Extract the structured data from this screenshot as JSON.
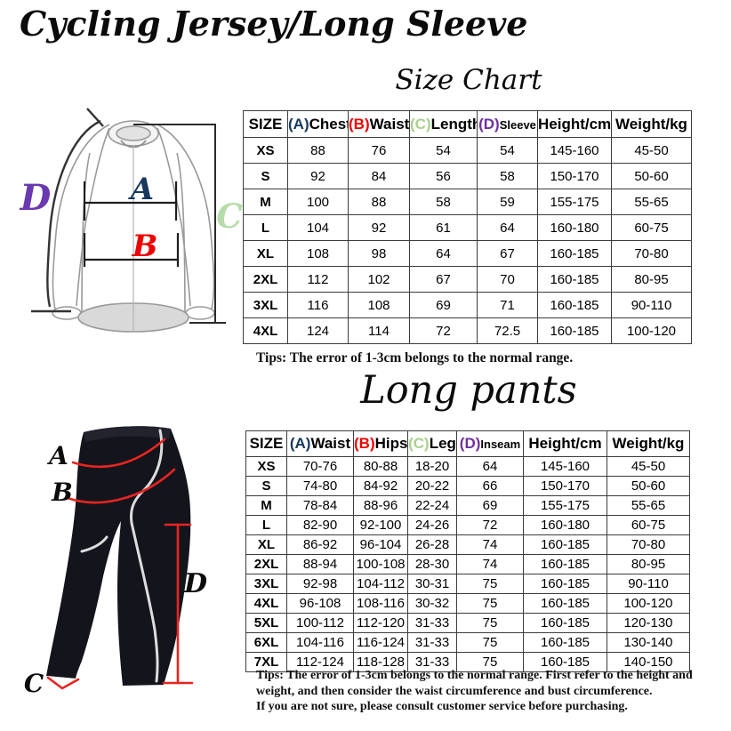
{
  "page": {
    "title": "Cycling Jersey/Long Sleeve",
    "size_chart_title": "Size Chart",
    "pants_title": "Long pants",
    "jersey_tips": "Tips: The error of 1-3cm belongs to the normal range.",
    "pants_tips_lines": [
      "Tips: The error of 1-3cm belongs to the normal range. First refer to the height and",
      "weight, and then consider the waist circumference and bust circumference.",
      "If you are not sure, please consult customer service before purchasing."
    ]
  },
  "colors": {
    "label_a_navy": "#17375e",
    "label_b_red": "#ee0000",
    "label_c_green": "#a9d18e",
    "label_d_purple": "#7030a0",
    "diagram_c_green": "#b7dcab",
    "diagram_d_purple": "#6a3ab0",
    "pants_annotation_red": "#e8251f",
    "table_border": "#3c3c3c"
  },
  "jersey_diagram": {
    "labels": {
      "a": "A",
      "b": "B",
      "c": "C",
      "d": "D"
    }
  },
  "pants_diagram": {
    "labels": {
      "a": "A",
      "b": "B",
      "c": "C",
      "d": "D"
    }
  },
  "jersey_table": {
    "columns": [
      {
        "prefix": "",
        "label": "SIZE"
      },
      {
        "prefix": "(A)",
        "color_key": "label_a_navy",
        "label": "Chest"
      },
      {
        "prefix": "(B)",
        "color_key": "label_b_red",
        "label": "Waist"
      },
      {
        "prefix": "(C)",
        "color_key": "label_c_green",
        "label": "Length"
      },
      {
        "prefix": "(D)",
        "color_key": "label_d_purple",
        "label": "Sleeve",
        "small": true
      },
      {
        "prefix": "",
        "label": "Height/cm"
      },
      {
        "prefix": "",
        "label": "Weight/kg"
      }
    ],
    "rows": [
      [
        "XS",
        "88",
        "76",
        "54",
        "54",
        "145-160",
        "45-50"
      ],
      [
        "S",
        "92",
        "84",
        "56",
        "58",
        "150-170",
        "50-60"
      ],
      [
        "M",
        "100",
        "88",
        "58",
        "59",
        "155-175",
        "55-65"
      ],
      [
        "L",
        "104",
        "92",
        "61",
        "64",
        "160-180",
        "60-75"
      ],
      [
        "XL",
        "108",
        "98",
        "64",
        "67",
        "160-185",
        "70-80"
      ],
      [
        "2XL",
        "112",
        "102",
        "67",
        "70",
        "160-185",
        "80-95"
      ],
      [
        "3XL",
        "116",
        "108",
        "69",
        "71",
        "160-185",
        "90-110"
      ],
      [
        "4XL",
        "124",
        "114",
        "72",
        "72.5",
        "160-185",
        "100-120"
      ]
    ]
  },
  "pants_table": {
    "columns": [
      {
        "prefix": "",
        "label": "SIZE"
      },
      {
        "prefix": "(A)",
        "color_key": "label_a_navy",
        "label": "Waist"
      },
      {
        "prefix": "(B)",
        "color_key": "label_b_red",
        "label": "Hips"
      },
      {
        "prefix": "(C)",
        "color_key": "label_c_green",
        "label": "Leg"
      },
      {
        "prefix": "(D)",
        "color_key": "label_d_purple",
        "label": "Inseam",
        "small": true
      },
      {
        "prefix": "",
        "label": "Height/cm"
      },
      {
        "prefix": "",
        "label": "Weight/kg"
      }
    ],
    "rows": [
      [
        "XS",
        "70-76",
        "80-88",
        "18-20",
        "64",
        "145-160",
        "45-50"
      ],
      [
        "S",
        "74-80",
        "84-92",
        "20-22",
        "66",
        "150-170",
        "50-60"
      ],
      [
        "M",
        "78-84",
        "88-96",
        "22-24",
        "69",
        "155-175",
        "55-65"
      ],
      [
        "L",
        "82-90",
        "92-100",
        "24-26",
        "72",
        "160-180",
        "60-75"
      ],
      [
        "XL",
        "86-92",
        "96-104",
        "26-28",
        "74",
        "160-185",
        "70-80"
      ],
      [
        "2XL",
        "88-94",
        "100-108",
        "28-30",
        "74",
        "160-185",
        "80-95"
      ],
      [
        "3XL",
        "92-98",
        "104-112",
        "30-31",
        "75",
        "160-185",
        "90-110"
      ],
      [
        "4XL",
        "96-108",
        "108-116",
        "30-32",
        "75",
        "160-185",
        "100-120"
      ],
      [
        "5XL",
        "100-112",
        "112-120",
        "31-33",
        "75",
        "160-185",
        "120-130"
      ],
      [
        "6XL",
        "104-116",
        "116-124",
        "31-33",
        "75",
        "160-185",
        "130-140"
      ],
      [
        "7XL",
        "112-124",
        "118-128",
        "31-33",
        "75",
        "160-185",
        "140-150"
      ]
    ]
  }
}
